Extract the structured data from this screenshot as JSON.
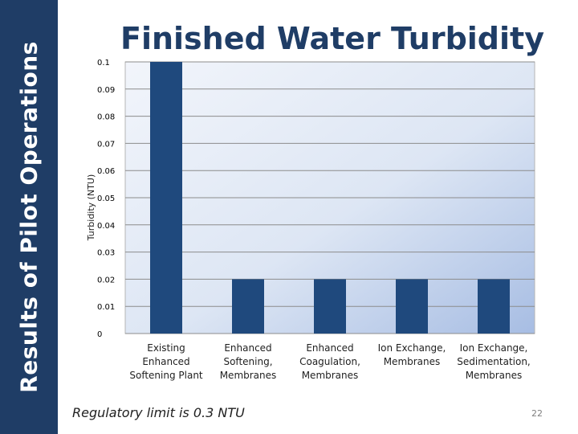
{
  "sidebar": {
    "title": "Results of Pilot Operations"
  },
  "footnote": "Regulatory limit is 0.3 NTU",
  "slide_number": "22",
  "colors": {
    "bar": "#1f497d",
    "navy": "#1f3d66"
  },
  "chart_data": {
    "type": "bar",
    "title": "Finished Water Turbidity",
    "xlabel": "",
    "ylabel": "Turbidity (NTU)",
    "ylim": [
      0,
      0.1
    ],
    "yticks": [
      "0",
      "0.01",
      "0.02",
      "0.03",
      "0.04",
      "0.05",
      "0.06",
      "0.07",
      "0.08",
      "0.09",
      "0.1"
    ],
    "categories": [
      [
        "Existing",
        "Enhanced",
        "Softening Plant"
      ],
      [
        "Enhanced",
        "Softening,",
        "Membranes"
      ],
      [
        "Enhanced",
        "Coagulation,",
        "Membranes"
      ],
      [
        "Ion Exchange,",
        "Membranes"
      ],
      [
        "Ion Exchange,",
        "Sedimentation,",
        "Membranes"
      ]
    ],
    "values": [
      0.1,
      0.02,
      0.02,
      0.02,
      0.02
    ]
  }
}
